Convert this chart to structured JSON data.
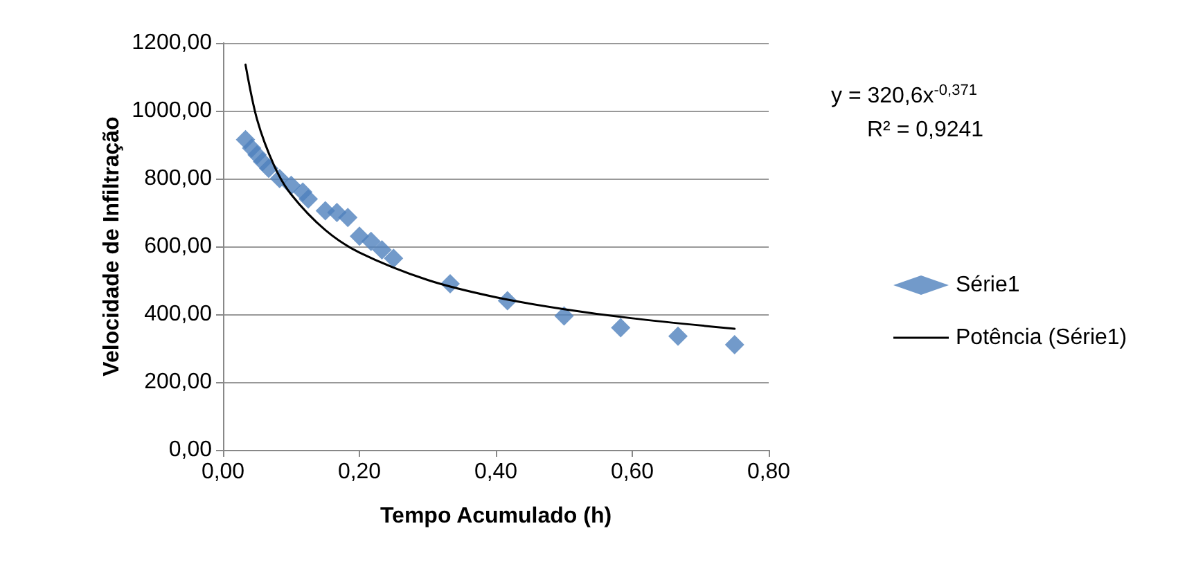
{
  "chart_data": {
    "type": "scatter",
    "xlabel": "Tempo Acumulado (h)",
    "ylabel": "Velocidade de Infiltração",
    "xlim": [
      0,
      0.8
    ],
    "xticks": [
      {
        "value": 0,
        "label": "0,00"
      },
      {
        "value": 0.2,
        "label": "0,20"
      },
      {
        "value": 0.4,
        "label": "0,40"
      },
      {
        "value": 0.6,
        "label": "0,60"
      },
      {
        "value": 0.8,
        "label": "0,80"
      }
    ],
    "ylim": [
      0,
      1200
    ],
    "yticks": [
      {
        "value": 0,
        "label": "0,00"
      },
      {
        "value": 200,
        "label": "200,00"
      },
      {
        "value": 400,
        "label": "400,00"
      },
      {
        "value": 600,
        "label": "600,00"
      },
      {
        "value": 800,
        "label": "800,00"
      },
      {
        "value": 1000,
        "label": "1000,00"
      },
      {
        "value": 1200,
        "label": "1200,00"
      }
    ],
    "grid": "y",
    "legend": "right",
    "marker": "diamond",
    "annotations": [
      "y = 320,6x$^{-0,371}$",
      "R² = 0,9241"
    ],
    "series": [
      {
        "name": "Série1",
        "color": "#4f81bd",
        "x": [
          0.033,
          0.042,
          0.05,
          0.058,
          0.067,
          0.075,
          0.083,
          0.1,
          0.117,
          0.125,
          0.15,
          0.167,
          0.183,
          0.2,
          0.217,
          0.233,
          0.25,
          0.333,
          0.417,
          0.5,
          0.583,
          0.667,
          0.75
        ],
        "values": [
          915,
          890,
          870,
          850,
          830,
          null,
          800,
          780,
          760,
          740,
          705,
          700,
          685,
          630,
          615,
          590,
          565,
          490,
          440,
          395,
          360,
          335,
          310
        ]
      },
      {
        "name": "Potência (Série1)",
        "type": "line",
        "color": "#000000",
        "marker": "none",
        "x": [
          0.033,
          0.05,
          0.075,
          0.1,
          0.15,
          0.2,
          0.3,
          0.4,
          0.5,
          0.6,
          0.75
        ],
        "values": [
          1136,
          974,
          838,
          753,
          648,
          582,
          501,
          450,
          415,
          388,
          357
        ]
      }
    ]
  }
}
